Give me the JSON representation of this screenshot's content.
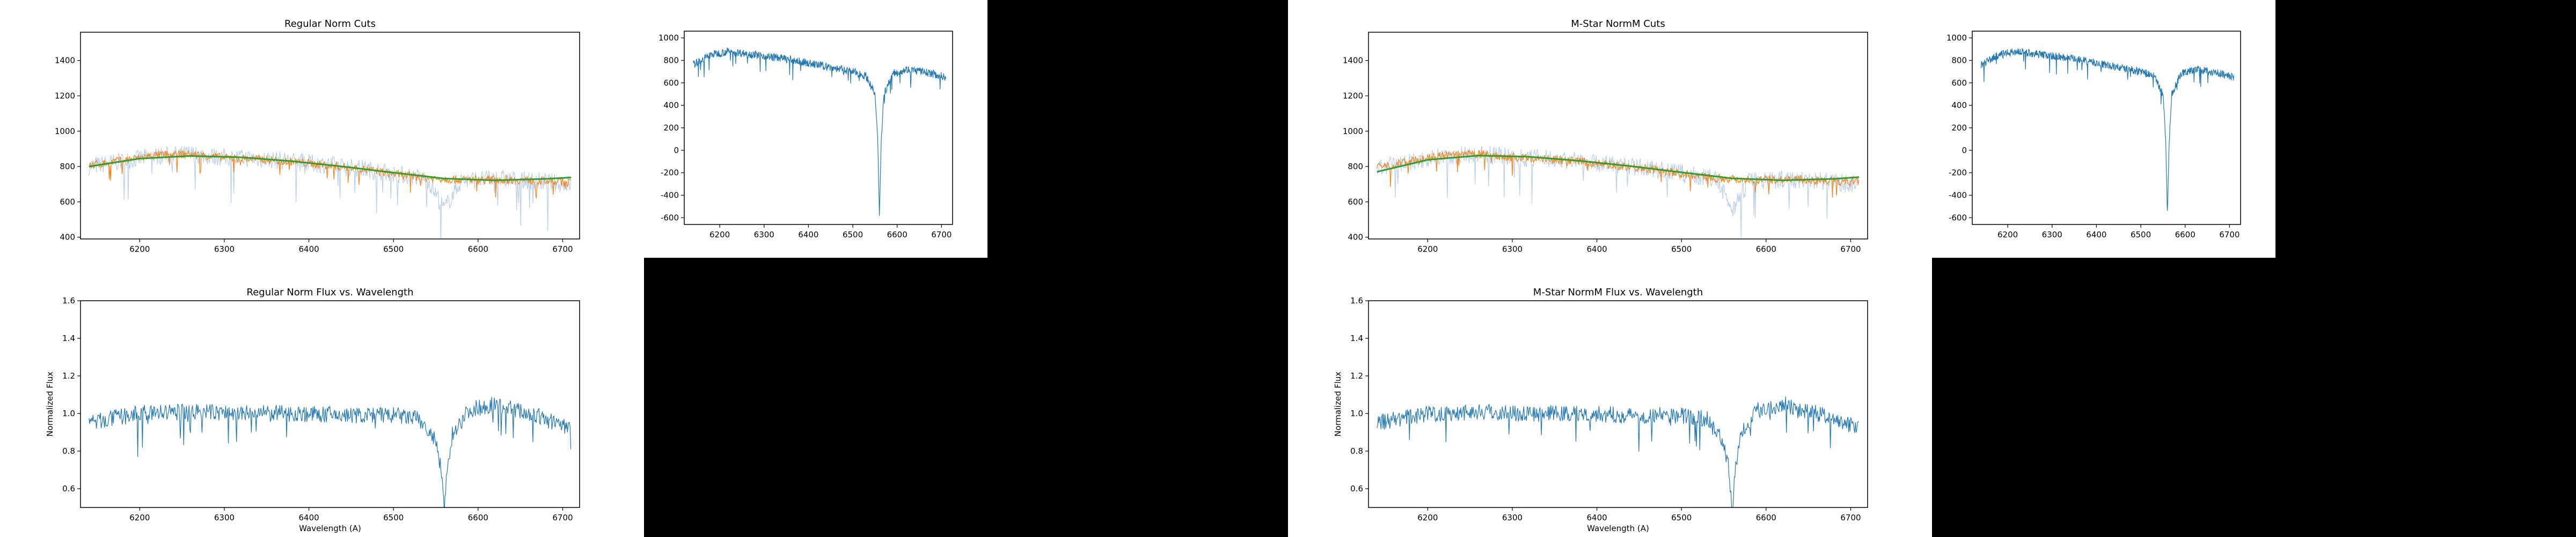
{
  "colors": {
    "spectrum": "#1f77b4",
    "fit": "#2ca02c",
    "cut": "#ff7f0e",
    "raw": "#aec7e8",
    "blackout": "#000000",
    "background": "#ffffff"
  },
  "chart_data": [
    {
      "id": "cuts_regular",
      "type": "line",
      "title": "Regular Norm Cuts",
      "xlabel": "",
      "ylabel": "",
      "xlim": [
        6130,
        6720
      ],
      "ylim": [
        390,
        1560
      ],
      "xticks": [
        6200,
        6300,
        6400,
        6500,
        6600,
        6700
      ],
      "yticks": [
        400,
        600,
        800,
        1000,
        1200,
        1400
      ],
      "series": [
        {
          "role": "raw",
          "x": [
            6140,
            6180,
            6220,
            6260,
            6300,
            6340,
            6380,
            6420,
            6460,
            6500,
            6540,
            6560,
            6580,
            6620,
            6660,
            6710
          ],
          "values": [
            800,
            830,
            860,
            870,
            850,
            845,
            830,
            810,
            790,
            760,
            730,
            560,
            720,
            730,
            720,
            700
          ]
        },
        {
          "role": "cut",
          "x": [
            6140,
            6180,
            6220,
            6260,
            6300,
            6340,
            6380,
            6420,
            6460,
            6500,
            6540,
            6580,
            6620,
            6660,
            6710
          ],
          "values": [
            805,
            835,
            865,
            870,
            850,
            842,
            828,
            808,
            788,
            758,
            735,
            725,
            728,
            722,
            710
          ]
        },
        {
          "role": "fit",
          "x": [
            6140,
            6200,
            6260,
            6320,
            6380,
            6440,
            6500,
            6560,
            6620,
            6680,
            6710
          ],
          "values": [
            800,
            845,
            860,
            852,
            830,
            800,
            765,
            732,
            722,
            730,
            738
          ]
        }
      ]
    },
    {
      "id": "spec_regular",
      "type": "line",
      "title": "",
      "xlabel": "",
      "ylabel": "",
      "xlim": [
        6120,
        6725
      ],
      "ylim": [
        -660,
        1060
      ],
      "xticks": [
        6200,
        6300,
        6400,
        6500,
        6600,
        6700
      ],
      "yticks": [
        -600,
        -400,
        -200,
        0,
        200,
        400,
        600,
        800,
        1000
      ],
      "series": [
        {
          "role": "spectrum",
          "x": [
            6140,
            6180,
            6220,
            6260,
            6300,
            6340,
            6380,
            6420,
            6460,
            6500,
            6530,
            6550,
            6556,
            6560,
            6564,
            6570,
            6590,
            6620,
            6660,
            6710
          ],
          "values": [
            760,
            850,
            880,
            860,
            840,
            820,
            790,
            760,
            730,
            700,
            660,
            500,
            100,
            -570,
            80,
            500,
            680,
            720,
            700,
            650
          ]
        }
      ]
    },
    {
      "id": "flux_regular",
      "type": "line",
      "title": "Regular Norm Flux vs. Wavelength",
      "xlabel": "Wavelength (A)",
      "ylabel": "Normalized Flux",
      "xlim": [
        6130,
        6720
      ],
      "ylim": [
        0.5,
        1.6
      ],
      "xticks": [
        6200,
        6300,
        6400,
        6500,
        6600,
        6700
      ],
      "yticks": [
        0.6,
        0.8,
        1.0,
        1.2,
        1.4,
        1.6
      ],
      "series": [
        {
          "role": "spectrum",
          "x": [
            6140,
            6200,
            6260,
            6320,
            6380,
            6440,
            6500,
            6530,
            6550,
            6556,
            6560,
            6564,
            6570,
            6590,
            6620,
            6660,
            6710
          ],
          "values": [
            0.95,
            1.0,
            1.01,
            1.0,
            1.0,
            0.99,
            0.99,
            0.97,
            0.85,
            0.7,
            0.5,
            0.72,
            0.9,
            1.02,
            1.05,
            1.0,
            0.92
          ]
        }
      ]
    },
    {
      "id": "cuts_mstar",
      "type": "line",
      "title": "M-Star NormM Cuts",
      "xlabel": "",
      "ylabel": "",
      "xlim": [
        6130,
        6720
      ],
      "ylim": [
        390,
        1560
      ],
      "xticks": [
        6200,
        6300,
        6400,
        6500,
        6600,
        6700
      ],
      "yticks": [
        400,
        600,
        800,
        1000,
        1200,
        1400
      ],
      "series": [
        {
          "role": "raw",
          "x": [
            6140,
            6180,
            6220,
            6260,
            6300,
            6340,
            6380,
            6420,
            6460,
            6500,
            6540,
            6560,
            6580,
            6620,
            6660,
            6710
          ],
          "values": [
            790,
            825,
            860,
            872,
            852,
            845,
            830,
            810,
            790,
            760,
            730,
            560,
            720,
            730,
            720,
            700
          ]
        },
        {
          "role": "cut",
          "x": [
            6140,
            6180,
            6220,
            6260,
            6300,
            6340,
            6380,
            6420,
            6460,
            6500,
            6540,
            6580,
            6620,
            6660,
            6710
          ],
          "values": [
            795,
            830,
            862,
            870,
            852,
            842,
            828,
            808,
            788,
            758,
            735,
            725,
            728,
            722,
            710
          ]
        },
        {
          "role": "fit",
          "x": [
            6140,
            6200,
            6260,
            6320,
            6380,
            6440,
            6500,
            6560,
            6620,
            6680,
            6710
          ],
          "values": [
            770,
            838,
            862,
            855,
            832,
            802,
            767,
            733,
            722,
            730,
            740
          ]
        }
      ]
    },
    {
      "id": "spec_mstar",
      "type": "line",
      "title": "",
      "xlabel": "",
      "ylabel": "",
      "xlim": [
        6120,
        6725
      ],
      "ylim": [
        -660,
        1060
      ],
      "xticks": [
        6200,
        6300,
        6400,
        6500,
        6600,
        6700
      ],
      "yticks": [
        -600,
        -400,
        -200,
        0,
        200,
        400,
        600,
        800,
        1000
      ],
      "series": [
        {
          "role": "spectrum",
          "x": [
            6140,
            6180,
            6220,
            6260,
            6300,
            6340,
            6380,
            6420,
            6460,
            6500,
            6530,
            6550,
            6556,
            6560,
            6564,
            6570,
            6590,
            6620,
            6660,
            6710
          ],
          "values": [
            760,
            850,
            880,
            860,
            840,
            820,
            790,
            760,
            730,
            700,
            660,
            500,
            100,
            -570,
            80,
            500,
            680,
            720,
            700,
            650
          ]
        }
      ]
    },
    {
      "id": "flux_mstar",
      "type": "line",
      "title": "M-Star NormM Flux vs. Wavelength",
      "xlabel": "Wavelength (A)",
      "ylabel": "Normalized Flux",
      "xlim": [
        6130,
        6720
      ],
      "ylim": [
        0.5,
        1.6
      ],
      "xticks": [
        6200,
        6300,
        6400,
        6500,
        6600,
        6700
      ],
      "yticks": [
        0.6,
        0.8,
        1.0,
        1.2,
        1.4,
        1.6
      ],
      "series": [
        {
          "role": "spectrum",
          "x": [
            6140,
            6200,
            6260,
            6320,
            6380,
            6440,
            6500,
            6530,
            6550,
            6556,
            6560,
            6564,
            6570,
            6590,
            6620,
            6660,
            6710
          ],
          "values": [
            0.95,
            1.0,
            1.01,
            1.0,
            1.0,
            0.99,
            0.99,
            0.97,
            0.85,
            0.7,
            0.5,
            0.72,
            0.9,
            1.02,
            1.05,
            1.0,
            0.92
          ]
        }
      ]
    }
  ]
}
